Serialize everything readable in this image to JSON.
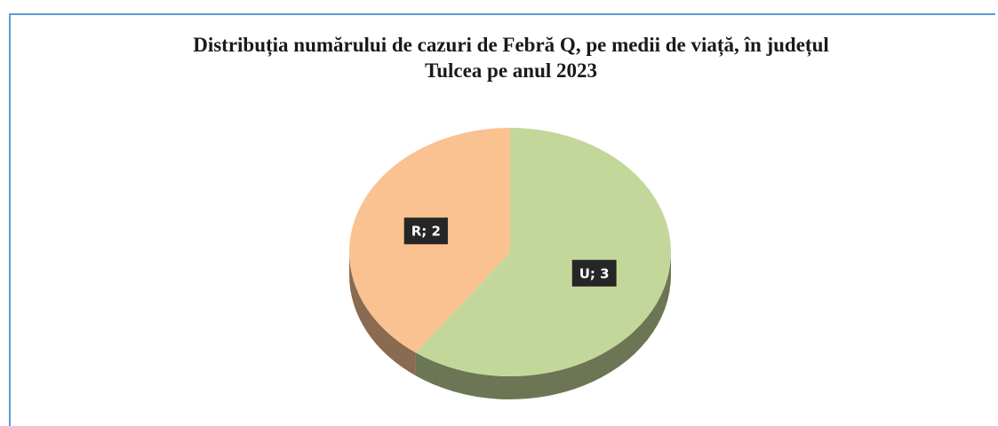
{
  "chart_data": {
    "type": "pie",
    "title": "Distribuția numărului de cazuri de Febră Q, pe medii de viață, în județul Tulcea pe anul 2023",
    "categories": [
      "U",
      "R"
    ],
    "values": [
      3,
      2
    ],
    "value_labels": [
      "U; 3",
      "R; 2"
    ],
    "colors": [
      "#c4d79b",
      "#fac191"
    ]
  }
}
